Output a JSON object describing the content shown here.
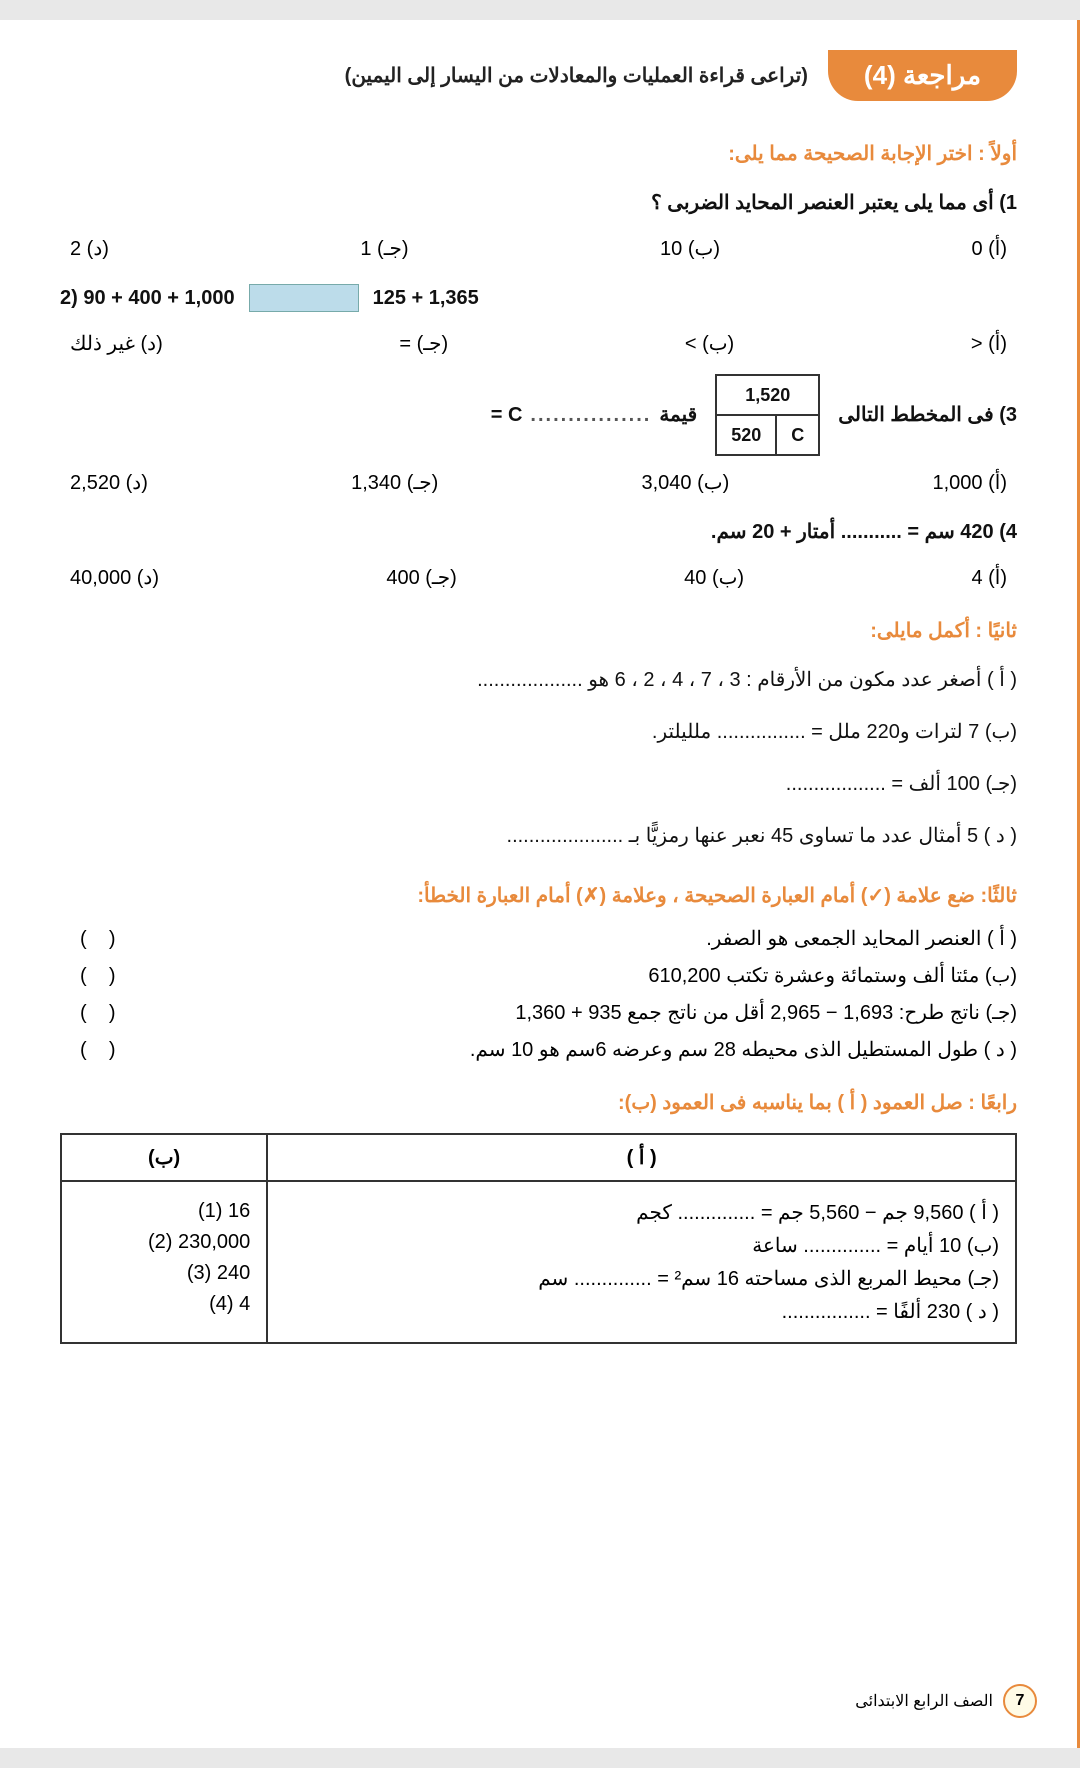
{
  "header": {
    "title": "مراجعة (4)",
    "subtitle": "(تراعى قراءة العمليات والمعادلات من اليسار إلى اليمين)"
  },
  "section1": {
    "heading": "أولاً : اختر الإجابة الصحيحة مما يلى:",
    "q1": {
      "text": "1) أى مما يلى يعتبر العنصر المحايد الضربى ؟",
      "a": "(أ) 0",
      "b": "(ب) 10",
      "c": "(جـ) 1",
      "d": "(د) 2"
    },
    "q2": {
      "prefix": "2) 90 + 400 + 1,000",
      "suffix": "125 + 1,365",
      "a": "(أ) <",
      "b": "(ب) >",
      "c": "(جـ) =",
      "d": "(د) غير ذلك"
    },
    "q3": {
      "text": "3) فى المخطط التالى",
      "top": "1,520",
      "botL": "C",
      "botR": "520",
      "after": "قيمة",
      "eq": "= C",
      "a": "(أ) 1,000",
      "b": "(ب) 3,040",
      "c": "(جـ) 1,340",
      "d": "(د) 2,520"
    },
    "q4": {
      "text": "4) 420 سم = ........... أمتار + 20 سم.",
      "a": "(أ) 4",
      "b": "(ب) 40",
      "c": "(جـ) 400",
      "d": "(د) 40,000"
    }
  },
  "section2": {
    "heading": "ثانيًا : أكمل مايلى:",
    "a": "( أ ) أصغر عدد مكون من الأرقام : 3 ، 7 ، 4 ، 2 ، 6 هو ...................",
    "b": "(ب) 7 لترات و220 ملل = ................ ملليلتر.",
    "c": "(جـ) 100 ألف = ..................",
    "d": "( د ) 5 أمثال عدد ما تساوى 45 نعبر عنها رمزيًّا بـ ....................."
  },
  "section3": {
    "heading": "ثالثًا: ضع علامة (✓) أمام العبارة الصحيحة ، وعلامة (✗) أمام العبارة الخطأ:",
    "a": "( أ ) العنصر المحايد الجمعى هو الصفر.",
    "b": "(ب) مئتا ألف وستمائة وعشرة تكتب 610,200",
    "c": "(جـ) ناتج طرح: 1,693 − 2,965 أقل من ناتج جمع 935 + 1,360",
    "d": "( د ) طول المستطيل الذى محيطه 28 سم وعرضه 6سم هو 10 سم."
  },
  "section4": {
    "heading": "رابعًا : صل العمود ( أ ) بما يناسبه فى العمود (ب):",
    "colA": "( أ )",
    "colB": "(ب)",
    "rowsA": [
      "( أ ) 9,560 جم − 5,560 جم = .............. كجم",
      "(ب) 10 أيام = .............. ساعة",
      "(جـ) محيط المربع الذى مساحته 16 سم² = .............. سم",
      "( د ) 230 ألفًا = ................"
    ],
    "rowsB": [
      "(1) 16",
      "(2) 230,000",
      "(3) 240",
      "(4) 4"
    ]
  },
  "footer": {
    "page": "7",
    "grade": "الصف الرابع الابتدائى"
  }
}
